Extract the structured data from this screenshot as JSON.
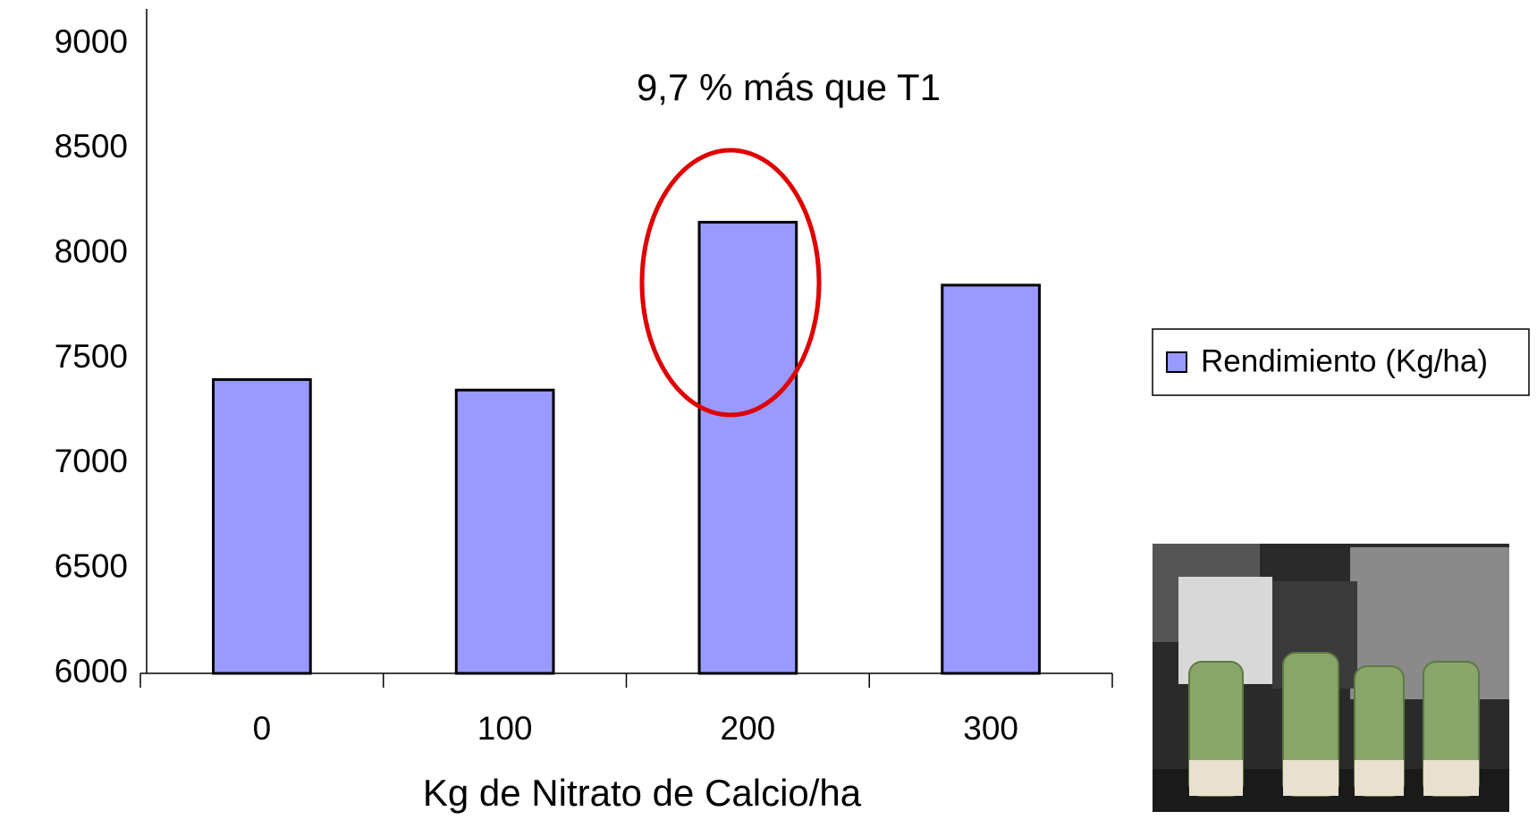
{
  "chart_data": {
    "type": "bar",
    "annotation": "9,7 % más que T1",
    "x_label": "Kg de Nitrato de Calcio/ha",
    "categories": [
      "0",
      "100",
      "200",
      "300"
    ],
    "series": [
      {
        "name": "Rendimiento (Kg/ha)",
        "color": "#9999ff",
        "values": [
          7400,
          7350,
          8150,
          7850
        ]
      }
    ],
    "ylim": [
      6000,
      9000
    ],
    "yticks": [
      6000,
      6500,
      7000,
      7500,
      8000,
      8500,
      9000
    ],
    "legend": "right"
  }
}
